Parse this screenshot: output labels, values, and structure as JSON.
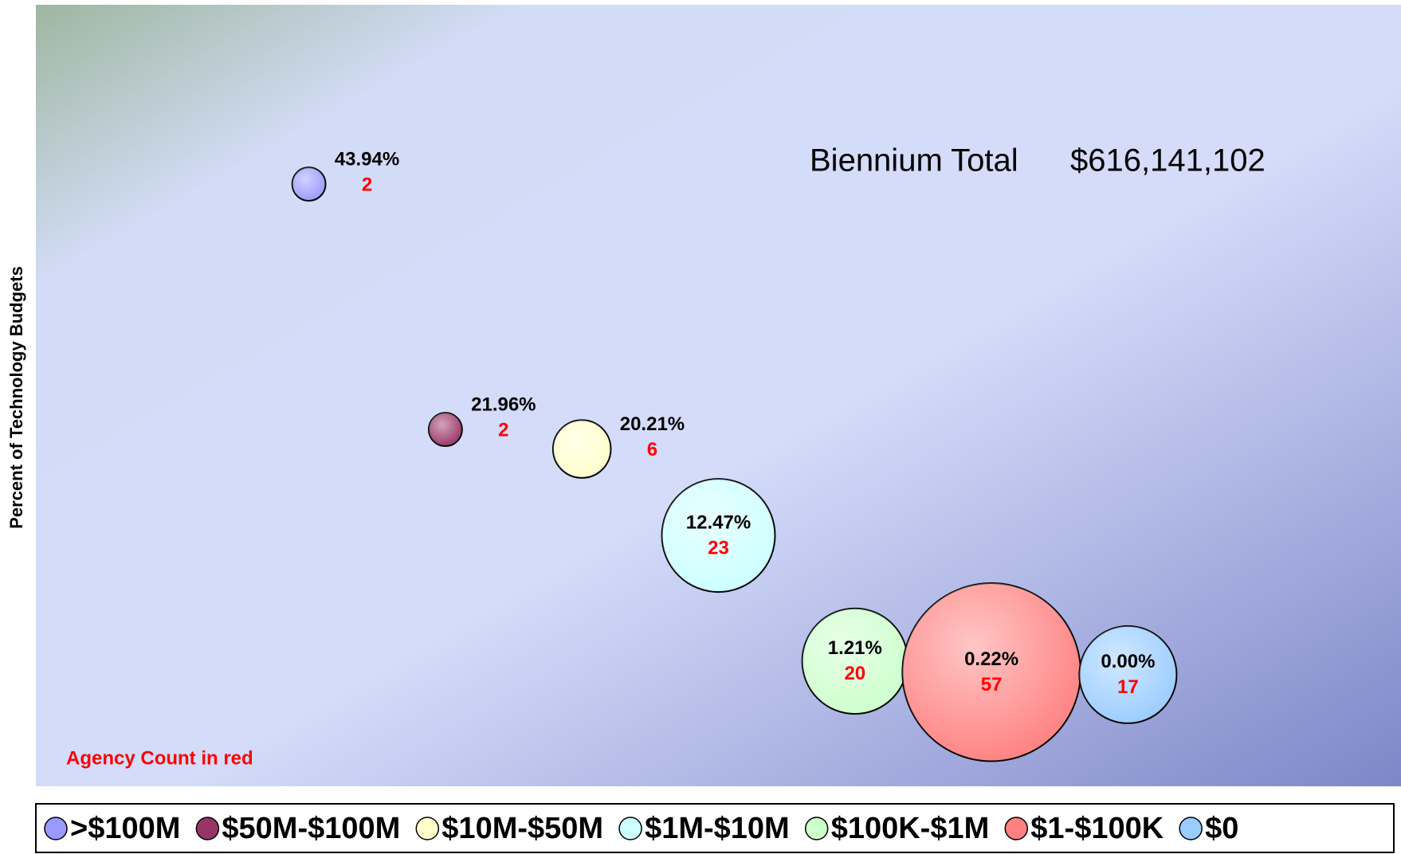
{
  "chart_data": {
    "type": "bubble",
    "annotation": {
      "label": "Biennium Total",
      "value": "$616,141,102"
    },
    "note": "Agency Count in red",
    "y_label": "Percent of Technology Budgets",
    "xlim": [
      -1,
      9
    ],
    "ylim": [
      -10,
      60
    ],
    "series": [
      {
        "name": ">$100M",
        "color": "#9999ff",
        "x": [
          1
        ],
        "values": [
          43.94
        ],
        "value_labels": [
          "43.94%"
        ],
        "sizes": [
          2
        ]
      },
      {
        "name": "$50M-$100M",
        "color": "#993366",
        "x": [
          2
        ],
        "values": [
          21.96
        ],
        "value_labels": [
          "21.96%"
        ],
        "sizes": [
          2
        ]
      },
      {
        "name": "$10M-$50M",
        "color": "#ffffcc",
        "x": [
          3
        ],
        "values": [
          20.21
        ],
        "value_labels": [
          "20.21%"
        ],
        "sizes": [
          6
        ]
      },
      {
        "name": "$1M-$10M",
        "color": "#ccffff",
        "x": [
          4
        ],
        "values": [
          12.47
        ],
        "value_labels": [
          "12.47%"
        ],
        "sizes": [
          23
        ]
      },
      {
        "name": "$100K-$1M",
        "color": "#ccffcc",
        "x": [
          5
        ],
        "values": [
          1.21
        ],
        "value_labels": [
          "1.21%"
        ],
        "sizes": [
          20
        ]
      },
      {
        "name": "$1-$100K",
        "color": "#ff8080",
        "x": [
          6
        ],
        "values": [
          0.22
        ],
        "value_labels": [
          "0.22%"
        ],
        "sizes": [
          57
        ]
      },
      {
        "name": "$0",
        "color": "#99ccff",
        "x": [
          7
        ],
        "values": [
          0.0
        ],
        "value_labels": [
          "0.00%"
        ],
        "sizes": [
          17
        ]
      }
    ]
  }
}
